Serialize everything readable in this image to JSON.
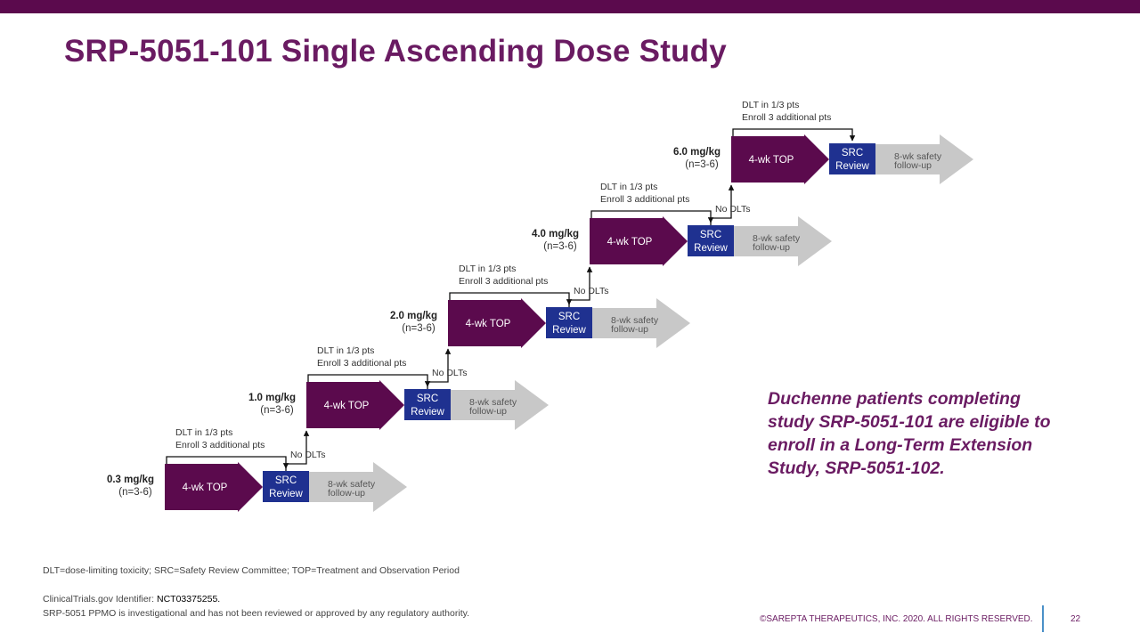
{
  "title": "SRP-5051-101 Single Ascending Dose Study",
  "colors": {
    "brand_purple": "#5b0a4d",
    "title_purple": "#6a1b62",
    "src_blue": "#1f3190",
    "followup_gray": "#c8c8c8"
  },
  "labels": {
    "top": "4-wk TOP",
    "src_line1": "SRC",
    "src_line2": "Review",
    "followup_line1": "8-wk safety",
    "followup_line2": "follow-up",
    "dlt_line1": "DLT in 1/3 pts",
    "dlt_line2": "Enroll 3 additional pts",
    "no_dlts": "No DLTs"
  },
  "cohorts": [
    {
      "dose": "0.3 mg/kg",
      "n": "(n=3-6)"
    },
    {
      "dose": "1.0 mg/kg",
      "n": "(n=3-6)"
    },
    {
      "dose": "2.0 mg/kg",
      "n": "(n=3-6)"
    },
    {
      "dose": "4.0 mg/kg",
      "n": "(n=3-6)"
    },
    {
      "dose": "6.0 mg/kg",
      "n": "(n=3-6)"
    }
  ],
  "callout": "Duchenne patients completing study SRP-5051-101 are eligible to enroll in a Long-Term Extension Study, SRP-5051-102.",
  "footnotes": {
    "abbreviations": "DLT=dose-limiting toxicity; SRC=Safety Review Committee; TOP=Treatment and Observation Period",
    "trial_prefix": "ClinicalTrials.gov Identifier: ",
    "trial_id": "NCT03375255.",
    "disclaimer": "SRP-5051 PPMO is investigational and has not been reviewed or approved by any regulatory authority.",
    "copyright": "©SAREPTA THERAPEUTICS, INC. 2020.  ALL RIGHTS RESERVED.",
    "page_number": "22"
  }
}
